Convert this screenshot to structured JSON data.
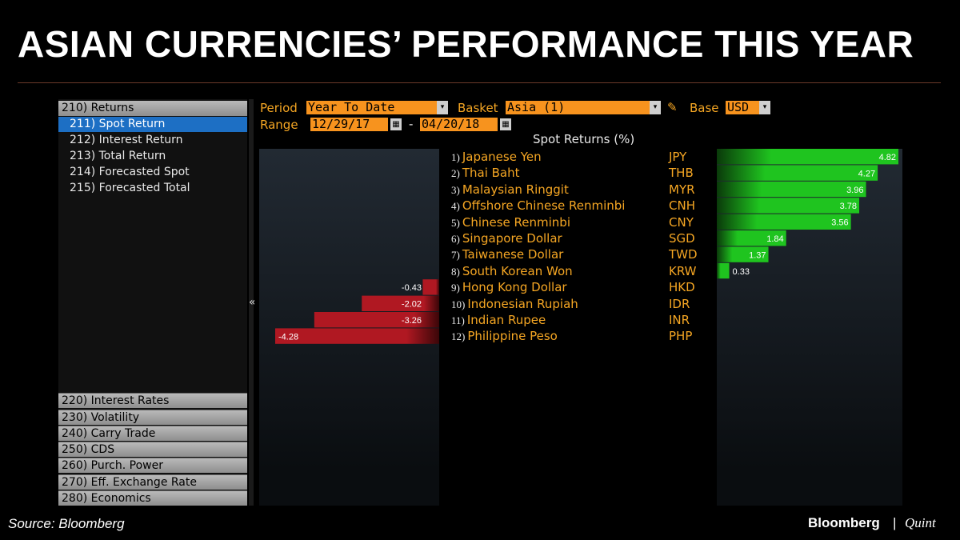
{
  "title": "ASIAN CURRENCIES’ PERFORMANCE THIS YEAR",
  "sidebar": {
    "header": "210) Returns",
    "items": [
      {
        "label": "211) Spot Return",
        "active": true
      },
      {
        "label": "212) Interest Return",
        "active": false
      },
      {
        "label": "213) Total Return",
        "active": false
      },
      {
        "label": "214) Forecasted Spot",
        "active": false
      },
      {
        "label": "215) Forecasted Total",
        "active": false
      }
    ],
    "bottom": [
      "220) Interest Rates",
      "230) Volatility",
      "240) Carry Trade",
      "250) CDS",
      "260) Purch. Power",
      "270) Eff. Exchange Rate",
      "280) Economics"
    ],
    "collapse": "«"
  },
  "controls": {
    "period_label": "Period",
    "period_value": "Year To Date",
    "basket_label": "Basket",
    "basket_value": "Asia (1)",
    "base_label": "Base",
    "base_value": "USD",
    "range_label": "Range",
    "range_start": "12/29/17",
    "range_sep": "-",
    "range_end": "04/20/18",
    "edit_icon": "pencil-icon",
    "calendar_icon": "calendar-icon"
  },
  "chart_data": {
    "type": "bar",
    "title": "Spot Returns (%)",
    "categories": [
      {
        "num": "1)",
        "name": "Japanese Yen",
        "code": "JPY"
      },
      {
        "num": "2)",
        "name": "Thai Baht",
        "code": "THB"
      },
      {
        "num": "3)",
        "name": "Malaysian Ringgit",
        "code": "MYR"
      },
      {
        "num": "4)",
        "name": "Offshore Chinese Renminbi",
        "code": "CNH"
      },
      {
        "num": "5)",
        "name": "Chinese Renminbi",
        "code": "CNY"
      },
      {
        "num": "6)",
        "name": "Singapore Dollar",
        "code": "SGD"
      },
      {
        "num": "7)",
        "name": "Taiwanese Dollar",
        "code": "TWD"
      },
      {
        "num": "8)",
        "name": "South Korean Won",
        "code": "KRW"
      },
      {
        "num": "9)",
        "name": "Hong Kong Dollar",
        "code": "HKD"
      },
      {
        "num": "10)",
        "name": "Indonesian Rupiah",
        "code": "IDR"
      },
      {
        "num": "11)",
        "name": "Indian Rupee",
        "code": "INR"
      },
      {
        "num": "12)",
        "name": "Philippine Peso",
        "code": "PHP"
      }
    ],
    "values": [
      4.82,
      4.27,
      3.96,
      3.78,
      3.56,
      1.84,
      1.37,
      0.33,
      -0.43,
      -2.02,
      -3.26,
      -4.28
    ],
    "value_labels": [
      "4.82",
      "4.27",
      "3.96",
      "3.78",
      "3.56",
      "1.84",
      "1.37",
      "0.33",
      "-0.43",
      "-2.02",
      "-3.26",
      "-4.28"
    ],
    "colors": {
      "positive": "#1fc41f",
      "negative": "#b01822"
    }
  },
  "footer": {
    "source": "Source: Bloomberg",
    "logo_left": "Bloomberg",
    "logo_sep": "|",
    "logo_right": "Quint"
  }
}
